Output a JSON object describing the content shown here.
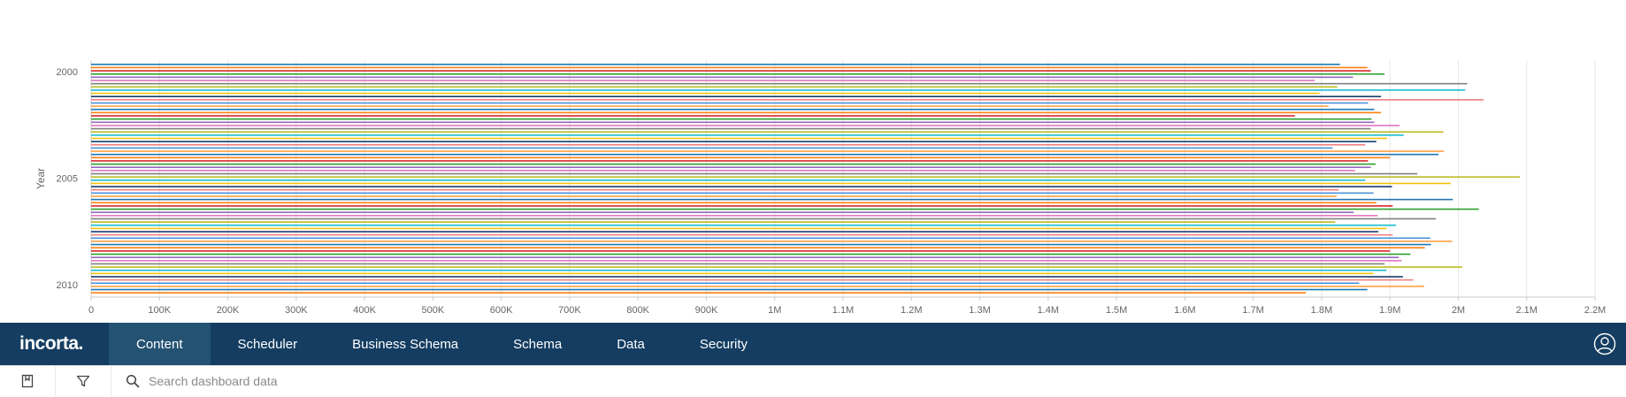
{
  "chart_data": {
    "type": "bar",
    "orientation": "horizontal",
    "y_axis_title": "Year",
    "y_tick_labels": [
      "2000",
      "2005",
      "2010"
    ],
    "y_range": [
      2000,
      2010
    ],
    "x_tick_labels": [
      "0",
      "100K",
      "200K",
      "300K",
      "400K",
      "500K",
      "600K",
      "700K",
      "800K",
      "900K",
      "1M",
      "1.1M",
      "1.2M",
      "1.3M",
      "1.4M",
      "1.5M",
      "1.6M",
      "1.7M",
      "1.8M",
      "1.9M",
      "2M",
      "2.1M",
      "2.2M"
    ],
    "x_range": [
      0,
      2200000
    ],
    "grid": true,
    "series_colors": [
      "#1f77b4",
      "#ff7f0e",
      "#d62728",
      "#2ca02c",
      "#9467bd",
      "#e377c2",
      "#7f7f7f",
      "#bcbd22",
      "#17becf",
      "#f4c20d",
      "#1a3a6b",
      "#f08080",
      "#4a90d9",
      "#ff9f40"
    ],
    "values": [
      1827000,
      1867000,
      1872000,
      1892000,
      1846000,
      1790000,
      2013000,
      1823000,
      2010000,
      1797000,
      1887000,
      2037000,
      1868000,
      1810000,
      1877000,
      1887000,
      1761000,
      1873000,
      1877000,
      1914000,
      1872000,
      1978000,
      1920000,
      1896000,
      1880000,
      1864000,
      1816000,
      1979000,
      1971000,
      1900000,
      1868000,
      1879000,
      1872000,
      1849000,
      1940000,
      2090000,
      1864000,
      1989000,
      1903000,
      1825000,
      1876000,
      1822000,
      1992000,
      1880000,
      1904000,
      2030000,
      1847000,
      1882000,
      1967000,
      1820000,
      1909000,
      1895000,
      1883000,
      1904000,
      1959000,
      1991000,
      1960000,
      1951000,
      1900000,
      1930000,
      1913000,
      1917000,
      1892000,
      2006000,
      1895000,
      1876000,
      1919000,
      1934000,
      1855000,
      1950000,
      1867000,
      1777000
    ]
  },
  "navbar": {
    "logo": "incorta.",
    "items": [
      {
        "label": "Content",
        "active": true
      },
      {
        "label": "Scheduler",
        "active": false
      },
      {
        "label": "Business Schema",
        "active": false
      },
      {
        "label": "Schema",
        "active": false
      },
      {
        "label": "Data",
        "active": false
      },
      {
        "label": "Security",
        "active": false
      }
    ],
    "user_icon": "user-circle-icon"
  },
  "toolbar": {
    "bookmark_icon": "bookmark-icon",
    "filter_icon": "filter-icon",
    "search_icon": "search-icon",
    "search_placeholder": "Search dashboard data",
    "search_value": ""
  }
}
